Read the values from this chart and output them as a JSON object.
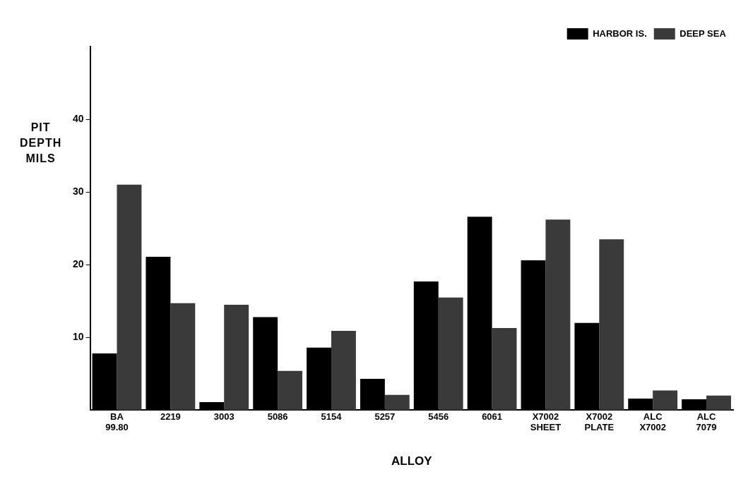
{
  "chart_data": {
    "type": "bar",
    "xlabel": "ALLOY",
    "ylabel": "PIT DEPTH MILS",
    "categories": [
      "BA 99.80",
      "2219",
      "3003",
      "5086",
      "5154",
      "5257",
      "5456",
      "6061",
      "X7002 SHEET",
      "X7002 PLATE",
      "ALC X7002",
      "ALC 7079"
    ],
    "series": [
      {
        "name": "HARBOR IS.",
        "color": "#000000",
        "values": [
          7.8,
          21.1,
          1.1,
          12.8,
          8.6,
          4.3,
          17.7,
          26.6,
          20.6,
          12.0,
          1.6,
          1.5
        ]
      },
      {
        "name": "DEEP SEA",
        "color": "#3a3a3a",
        "values": [
          31.0,
          14.7,
          14.5,
          5.4,
          10.9,
          2.1,
          15.5,
          11.3,
          26.2,
          23.5,
          2.7,
          2.0
        ]
      }
    ],
    "ylim": [
      0,
      50
    ],
    "yticks": [
      10,
      20,
      30,
      40
    ],
    "grid": false,
    "legend": "top right"
  }
}
